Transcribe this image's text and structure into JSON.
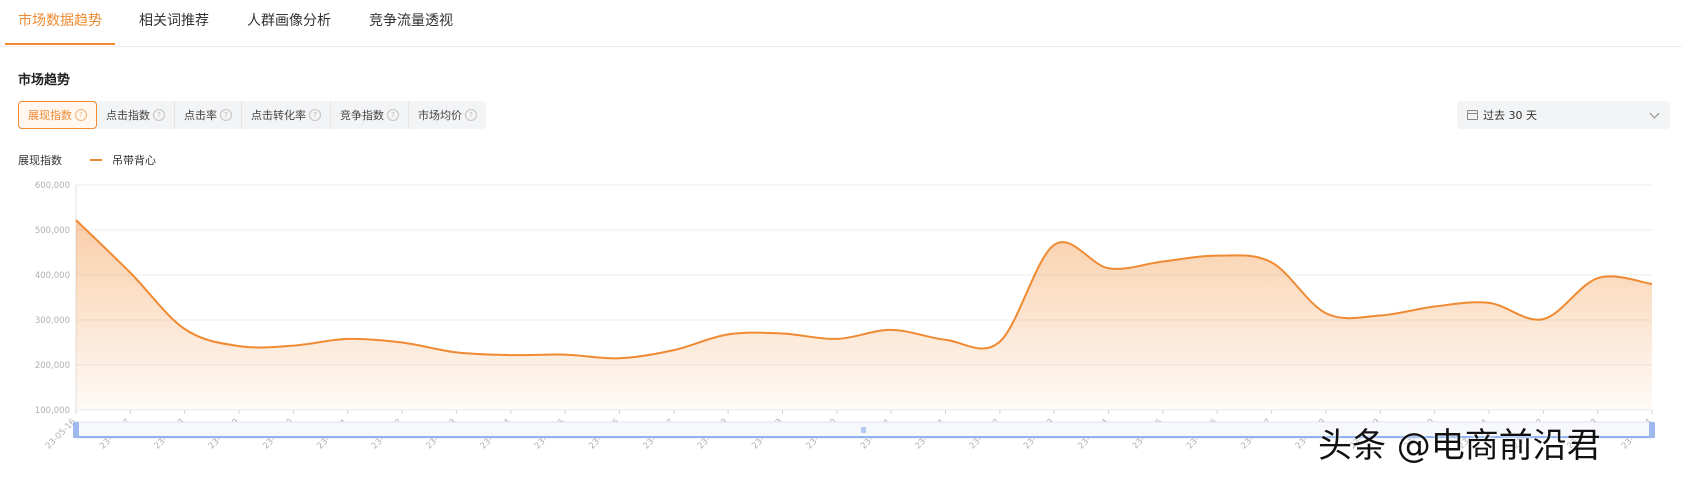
{
  "tabs": [
    "市场数据趋势",
    "相关词推荐",
    "人群画像分析",
    "竞争流量透视"
  ],
  "section_title": "市场趋势",
  "metrics": [
    "展现指数",
    "点击指数",
    "点击率",
    "点击转化率",
    "竞争指数",
    "市场均价"
  ],
  "help_glyph": "?",
  "date_range": "过去 30 天",
  "legend": {
    "label": "展现指数",
    "series_name": "吊带背心"
  },
  "watermark": "头条 @电商前沿君",
  "colors": {
    "accent": "#f08a32",
    "grid": "#ececec",
    "axis_text": "#b0b0b0"
  },
  "chart_data": {
    "type": "area",
    "ylabel": "展现指数",
    "ylim": [
      100000,
      600000
    ],
    "y_ticks": [
      "600,000",
      "500,000",
      "400,000",
      "300,000",
      "200,000",
      "100,000"
    ],
    "x": [
      "23-05-16",
      "23-05-17",
      "23-05-18",
      "23-05-19",
      "23-05-20",
      "23-05-21",
      "23-05-22",
      "23-05-23",
      "23-05-24",
      "23-05-25",
      "23-05-26",
      "23-05-27",
      "23-05-28",
      "23-05-29",
      "23-05-30",
      "23-05-31",
      "23-06-01",
      "23-06-02",
      "23-06-03",
      "23-06-04",
      "23-06-05",
      "23-06-06",
      "23-06-07",
      "23-06-08",
      "23-06-09",
      "23-06-10",
      "23-06-11",
      "23-06-12",
      "23-06-13",
      "23-06-14"
    ],
    "series": [
      {
        "name": "吊带背心",
        "values": [
          522000,
          405000,
          280000,
          242000,
          243000,
          258000,
          250000,
          228000,
          222000,
          223000,
          215000,
          233000,
          268000,
          270000,
          258000,
          278000,
          256000,
          252000,
          467000,
          415000,
          430000,
          443000,
          428000,
          315000,
          310000,
          330000,
          338000,
          302000,
          393000,
          380000
        ]
      }
    ],
    "grid": true,
    "legend_position": "top-left"
  }
}
